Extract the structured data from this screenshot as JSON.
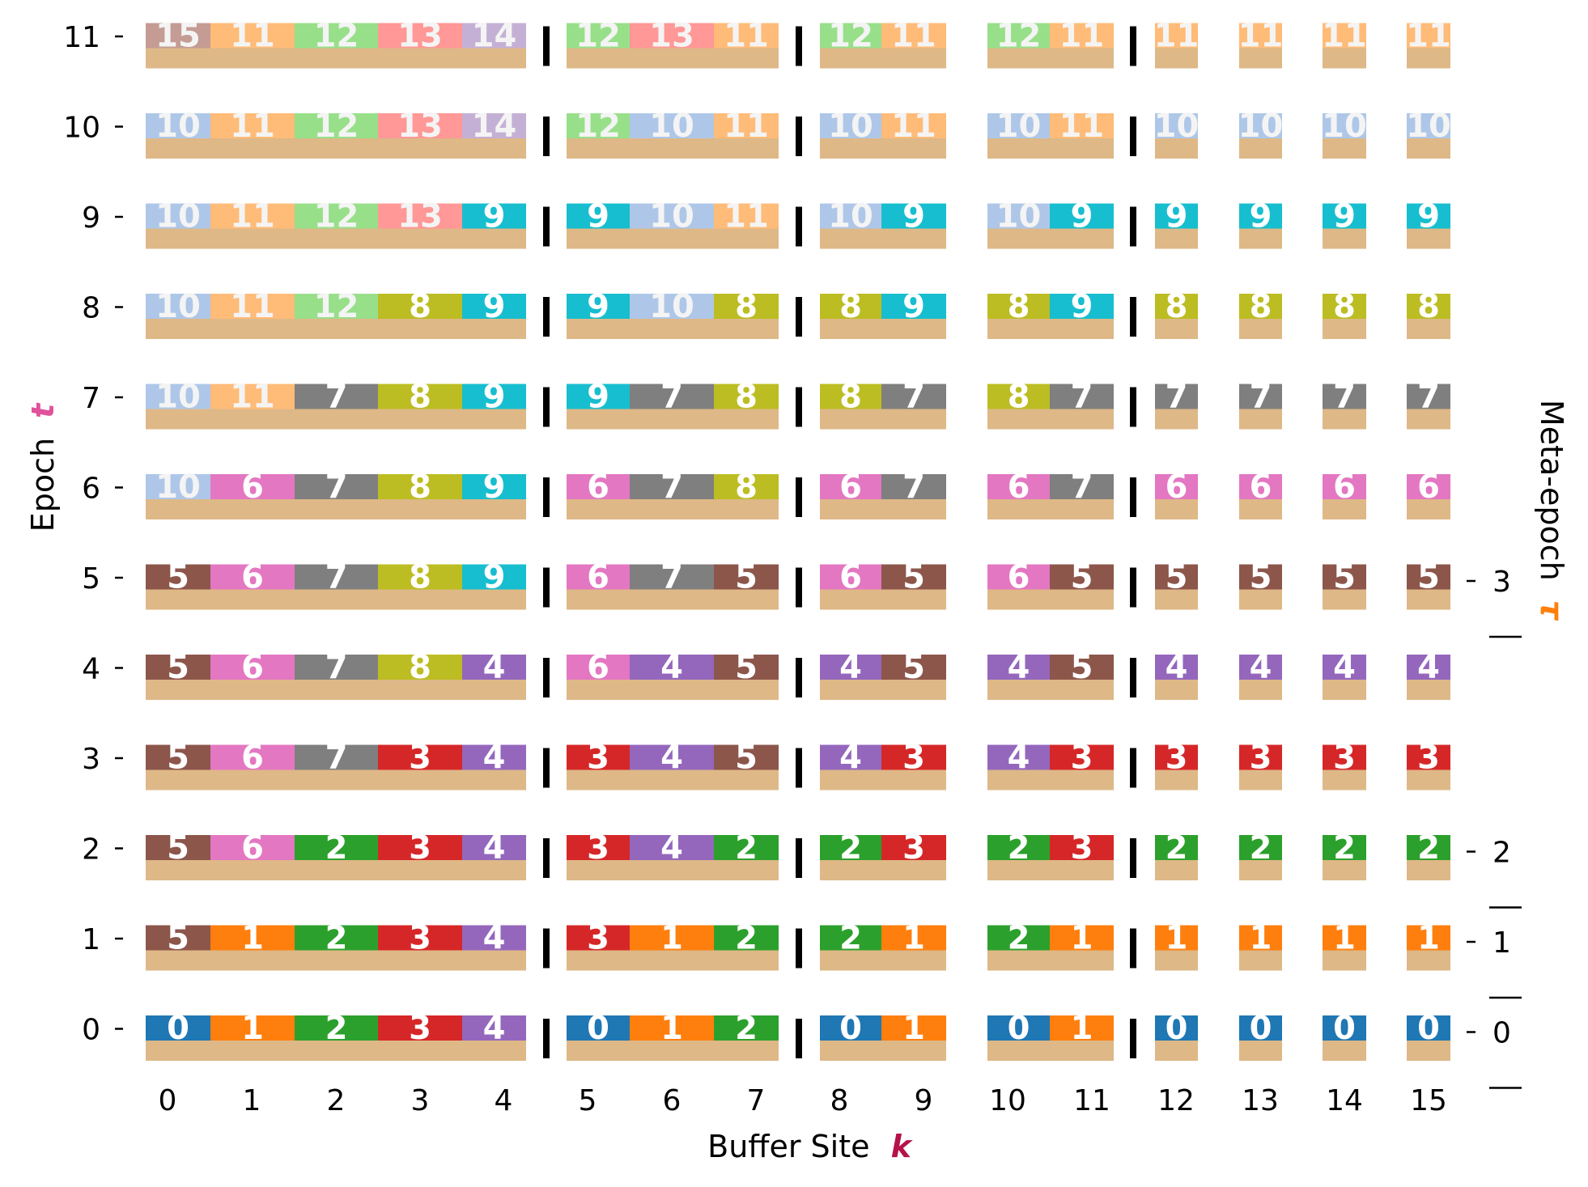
{
  "chart_data": {
    "type": "heatmap",
    "x_axis": {
      "label": "Buffer Site",
      "symbol": "k",
      "symbol_color": "#b5124a",
      "tick_labels": [
        "0",
        "1",
        "2",
        "3",
        "4",
        "5",
        "6",
        "7",
        "8",
        "9",
        "10",
        "11",
        "12",
        "13",
        "14",
        "15"
      ]
    },
    "y_axis": {
      "label": "Epoch",
      "symbol": "t",
      "symbol_color": "#e0529c",
      "tick_labels": [
        "0",
        "1",
        "2",
        "3",
        "4",
        "5",
        "6",
        "7",
        "8",
        "9",
        "10",
        "11"
      ]
    },
    "right_axis": {
      "label": "Meta-epoch",
      "symbol": "τ",
      "symbol_color": "#ff7f0e",
      "ticks": [
        {
          "label": "0",
          "epoch": 0
        },
        {
          "label": "1",
          "epoch": 1
        },
        {
          "label": "2",
          "epoch": 2
        },
        {
          "label": "3",
          "epoch": 5
        }
      ]
    },
    "site_groups": [
      [
        0,
        1,
        2,
        3,
        4
      ],
      [
        5,
        6,
        7
      ],
      [
        8,
        9
      ],
      [
        10,
        11
      ],
      [
        12
      ],
      [
        13
      ],
      [
        14
      ],
      [
        15
      ]
    ],
    "group_separators_after_sites": [
      4,
      7,
      11
    ],
    "base_color": "#deb887",
    "value_colors": {
      "0": "#1f77b4",
      "1": "#ff7f0e",
      "2": "#2ca02c",
      "3": "#d62728",
      "4": "#9467bd",
      "5": "#8c564b",
      "6": "#e377c2",
      "7": "#7f7f7f",
      "8": "#bcbd22",
      "9": "#17becf",
      "10": "#aec7e8",
      "11": "#ffbb78",
      "12": "#98df8a",
      "13": "#ff9896",
      "14": "#c5b0d5",
      "15": "#c49c94"
    },
    "rows": [
      {
        "epoch": 0,
        "values": [
          0,
          1,
          2,
          3,
          4,
          0,
          1,
          2,
          0,
          1,
          0,
          1,
          0,
          0,
          0,
          0
        ]
      },
      {
        "epoch": 1,
        "values": [
          5,
          1,
          2,
          3,
          4,
          3,
          1,
          2,
          2,
          1,
          2,
          1,
          1,
          1,
          1,
          1
        ]
      },
      {
        "epoch": 2,
        "values": [
          5,
          6,
          2,
          3,
          4,
          3,
          4,
          2,
          2,
          3,
          2,
          3,
          2,
          2,
          2,
          2
        ]
      },
      {
        "epoch": 3,
        "values": [
          5,
          6,
          7,
          3,
          4,
          3,
          4,
          5,
          4,
          3,
          4,
          3,
          3,
          3,
          3,
          3
        ]
      },
      {
        "epoch": 4,
        "values": [
          5,
          6,
          7,
          8,
          4,
          6,
          4,
          5,
          4,
          5,
          4,
          5,
          4,
          4,
          4,
          4
        ]
      },
      {
        "epoch": 5,
        "values": [
          5,
          6,
          7,
          8,
          9,
          6,
          7,
          5,
          6,
          5,
          6,
          5,
          5,
          5,
          5,
          5
        ]
      },
      {
        "epoch": 6,
        "values": [
          10,
          6,
          7,
          8,
          9,
          6,
          7,
          8,
          6,
          7,
          6,
          7,
          6,
          6,
          6,
          6
        ]
      },
      {
        "epoch": 7,
        "values": [
          10,
          11,
          7,
          8,
          9,
          9,
          7,
          8,
          8,
          7,
          8,
          7,
          7,
          7,
          7,
          7
        ]
      },
      {
        "epoch": 8,
        "values": [
          10,
          11,
          12,
          8,
          9,
          9,
          10,
          8,
          8,
          9,
          8,
          9,
          8,
          8,
          8,
          8
        ]
      },
      {
        "epoch": 9,
        "values": [
          10,
          11,
          12,
          13,
          9,
          9,
          10,
          11,
          10,
          9,
          10,
          9,
          9,
          9,
          9,
          9
        ]
      },
      {
        "epoch": 10,
        "values": [
          10,
          11,
          12,
          13,
          14,
          12,
          10,
          11,
          10,
          11,
          10,
          11,
          10,
          10,
          10,
          10
        ]
      },
      {
        "epoch": 11,
        "values": [
          15,
          11,
          12,
          13,
          14,
          12,
          13,
          11,
          12,
          11,
          12,
          11,
          11,
          11,
          11,
          11
        ]
      }
    ]
  }
}
